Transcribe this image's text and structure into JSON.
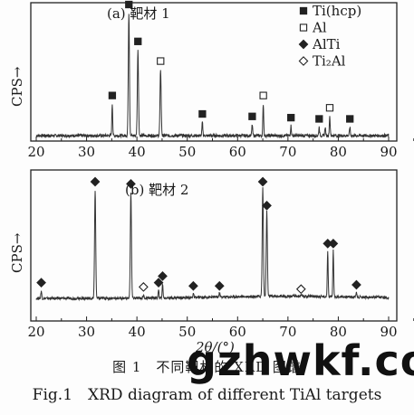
{
  "chart_data": [
    {
      "type": "line",
      "panel_label": "(a) 靶材 1",
      "ylabel": "CPS→",
      "xlabel": "",
      "xlim": [
        20,
        90
      ],
      "x_ticks": [
        20,
        30,
        40,
        50,
        60,
        70,
        80,
        90
      ],
      "legend_position": "top-right",
      "legend": [
        {
          "marker": "filled-square",
          "label": "Ti(hcp)"
        },
        {
          "marker": "open-square",
          "label": "Al"
        },
        {
          "marker": "filled-diamond",
          "label": "AlTi"
        },
        {
          "marker": "open-diamond",
          "label": "Ti₂Al"
        }
      ],
      "peaks": [
        {
          "x": 35.1,
          "height": 0.26,
          "marker": "filled-square"
        },
        {
          "x": 38.4,
          "height": 1.0,
          "marker": "filled-square"
        },
        {
          "x": 40.2,
          "height": 0.7,
          "marker": "filled-square"
        },
        {
          "x": 44.7,
          "height": 0.54,
          "marker": "open-square"
        },
        {
          "x": 53.0,
          "height": 0.11,
          "marker": "filled-square"
        },
        {
          "x": 62.9,
          "height": 0.09,
          "marker": "filled-square"
        },
        {
          "x": 65.1,
          "height": 0.26,
          "marker": "open-square"
        },
        {
          "x": 70.6,
          "height": 0.08,
          "marker": "filled-square"
        },
        {
          "x": 76.2,
          "height": 0.07,
          "marker": "filled-square"
        },
        {
          "x": 77.4,
          "height": 0.07,
          "marker": ""
        },
        {
          "x": 78.3,
          "height": 0.16,
          "marker": "open-square"
        },
        {
          "x": 82.3,
          "height": 0.07,
          "marker": "filled-square"
        }
      ]
    },
    {
      "type": "line",
      "panel_label": "(b) 靶材 2",
      "ylabel": "CPS→",
      "xlabel": "2θ/(°)",
      "xlim": [
        20,
        90
      ],
      "x_ticks": [
        20,
        30,
        40,
        50,
        60,
        70,
        80,
        90
      ],
      "peaks": [
        {
          "x": 21.0,
          "height": 0.07,
          "marker": "filled-diamond"
        },
        {
          "x": 31.7,
          "height": 1.0,
          "marker": "filled-diamond"
        },
        {
          "x": 38.8,
          "height": 0.98,
          "marker": "filled-diamond"
        },
        {
          "x": 41.3,
          "height": 0.03,
          "marker": "open-diamond"
        },
        {
          "x": 44.3,
          "height": 0.07,
          "marker": "filled-diamond"
        },
        {
          "x": 45.1,
          "height": 0.13,
          "marker": "filled-diamond"
        },
        {
          "x": 51.2,
          "height": 0.04,
          "marker": "filled-diamond"
        },
        {
          "x": 56.4,
          "height": 0.04,
          "marker": "filled-diamond"
        },
        {
          "x": 65.0,
          "height": 1.0,
          "marker": "filled-diamond"
        },
        {
          "x": 65.8,
          "height": 0.78,
          "marker": "filled-diamond"
        },
        {
          "x": 72.6,
          "height": 0.01,
          "marker": "open-diamond"
        },
        {
          "x": 77.9,
          "height": 0.43,
          "marker": "filled-diamond"
        },
        {
          "x": 79.0,
          "height": 0.43,
          "marker": "filled-diamond"
        },
        {
          "x": 83.6,
          "height": 0.05,
          "marker": "filled-diamond"
        }
      ]
    }
  ],
  "caption_cn": "图 1　不同靶材的 XRD 图谱",
  "caption_en": "Fig.1　XRD diagram of different TiAl targets",
  "watermark": "gzhwkf.co"
}
